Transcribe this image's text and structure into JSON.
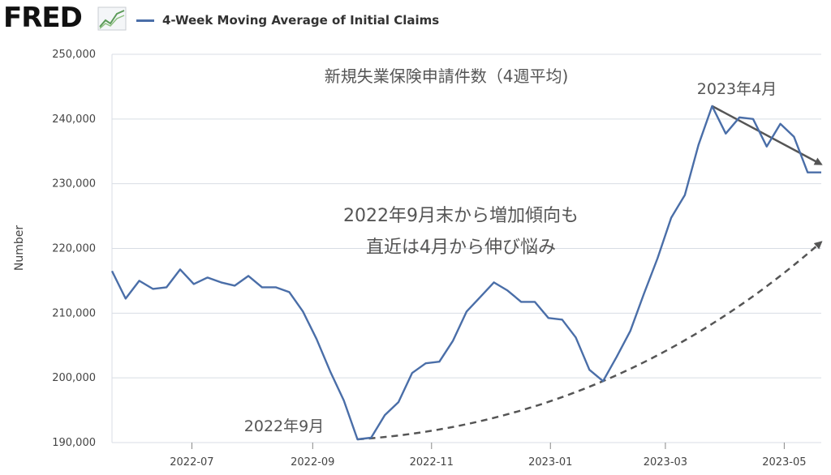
{
  "header": {
    "logo_text": "FRED",
    "legend_label": "4-Week Moving Average of Initial Claims"
  },
  "colors": {
    "series": "#4a6ea8",
    "grid": "#d8dde4",
    "annotation": "#555555"
  },
  "chart_data": {
    "type": "line",
    "title": "",
    "xlabel": "",
    "ylabel": "Number",
    "ylim": [
      190000,
      250000
    ],
    "xlim": [
      "2022-05-21",
      "2023-05-20"
    ],
    "grid": true,
    "y_ticks": [
      190000,
      200000,
      210000,
      220000,
      230000,
      240000,
      250000
    ],
    "y_tick_labels": [
      "190,000",
      "200,000",
      "210,000",
      "220,000",
      "230,000",
      "240,000",
      "250,000"
    ],
    "x_ticks": [
      "2022-07-01",
      "2022-09-01",
      "2022-11-01",
      "2023-01-01",
      "2023-03-01",
      "2023-05-01"
    ],
    "x_tick_labels": [
      "2022-07",
      "2022-09",
      "2022-11",
      "2023-01",
      "2023-03",
      "2023-05"
    ],
    "series": [
      {
        "name": "4-Week Moving Average of Initial Claims",
        "x": [
          "2022-05-21",
          "2022-05-28",
          "2022-06-04",
          "2022-06-11",
          "2022-06-18",
          "2022-06-25",
          "2022-07-02",
          "2022-07-09",
          "2022-07-16",
          "2022-07-23",
          "2022-07-30",
          "2022-08-06",
          "2022-08-13",
          "2022-08-20",
          "2022-08-27",
          "2022-09-03",
          "2022-09-10",
          "2022-09-17",
          "2022-09-24",
          "2022-10-01",
          "2022-10-08",
          "2022-10-15",
          "2022-10-22",
          "2022-10-29",
          "2022-11-05",
          "2022-11-12",
          "2022-11-19",
          "2022-11-26",
          "2022-12-03",
          "2022-12-10",
          "2022-12-17",
          "2022-12-24",
          "2022-12-31",
          "2023-01-07",
          "2023-01-14",
          "2023-01-21",
          "2023-01-28",
          "2023-02-04",
          "2023-02-11",
          "2023-02-18",
          "2023-02-25",
          "2023-03-04",
          "2023-03-11",
          "2023-03-18",
          "2023-03-25",
          "2023-04-01",
          "2023-04-08",
          "2023-04-15",
          "2023-04-22",
          "2023-04-29",
          "2023-05-06",
          "2023-05-13",
          "2023-05-20"
        ],
        "values": [
          216500,
          212250,
          215000,
          213750,
          214000,
          216750,
          214500,
          215500,
          214750,
          214250,
          215750,
          214000,
          214000,
          213250,
          210250,
          206000,
          201000,
          196500,
          190500,
          190750,
          194250,
          196250,
          200750,
          202250,
          202500,
          205750,
          210250,
          212500,
          214750,
          213500,
          211750,
          211750,
          209250,
          209000,
          206250,
          201250,
          199500,
          203250,
          207250,
          213000,
          218500,
          224750,
          228250,
          236000,
          242000,
          237750,
          240250,
          240000,
          235750,
          239250,
          237250,
          231750,
          231750
        ]
      }
    ],
    "annotations": [
      {
        "id": "title",
        "text": "新規失業保険申請件数（4週平均)"
      },
      {
        "id": "peak",
        "text": "2023年4月"
      },
      {
        "id": "body_line1",
        "text": "2022年9月末から増加傾向も"
      },
      {
        "id": "body_line2",
        "text": "直近は4月から伸び悩み"
      },
      {
        "id": "low",
        "text": "2022年9月"
      }
    ],
    "trend_lines": [
      {
        "id": "decline",
        "style": "solid",
        "from": {
          "x": "2023-03-25",
          "y": 242000
        },
        "to": {
          "x": "2023-05-20",
          "y": 233000
        }
      },
      {
        "id": "rise",
        "style": "dashed",
        "from": {
          "x": "2022-09-24",
          "y": 190500
        },
        "via": {
          "x": "2023-01-28",
          "y": 199500
        },
        "to": {
          "x": "2023-05-20",
          "y": 221000
        }
      }
    ]
  }
}
